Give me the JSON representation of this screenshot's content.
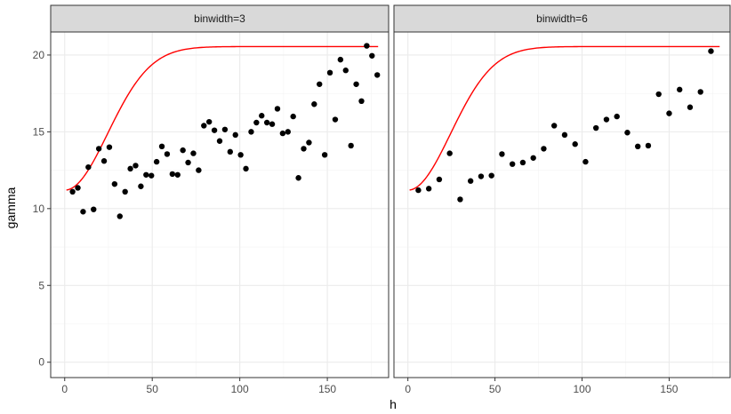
{
  "chart_data": {
    "type": "scatter",
    "xlabel": "h",
    "ylabel": "gamma",
    "xlim": [
      -8,
      185
    ],
    "ylim": [
      -1,
      21.5
    ],
    "x_ticks": [
      0,
      50,
      100,
      150
    ],
    "y_ticks": [
      0,
      5,
      10,
      15,
      20
    ],
    "grid": true,
    "colors": {
      "points": "#000000",
      "curve": "#ff0000",
      "strip": "#d9d9d9",
      "grid": "#ebebeb"
    },
    "panels": [
      {
        "strip_label": "binwidth=3",
        "points": [
          [
            4.5,
            11.1
          ],
          [
            7.5,
            11.35
          ],
          [
            10.5,
            9.8
          ],
          [
            13.5,
            12.7
          ],
          [
            16.5,
            9.95
          ],
          [
            19.5,
            13.9
          ],
          [
            22.5,
            13.1
          ],
          [
            25.5,
            14.0
          ],
          [
            28.5,
            11.6
          ],
          [
            31.5,
            9.5
          ],
          [
            34.5,
            11.1
          ],
          [
            37.5,
            12.6
          ],
          [
            40.5,
            12.8
          ],
          [
            43.5,
            11.45
          ],
          [
            46.5,
            12.2
          ],
          [
            49.5,
            12.15
          ],
          [
            52.5,
            13.05
          ],
          [
            55.5,
            14.05
          ],
          [
            58.5,
            13.55
          ],
          [
            61.5,
            12.25
          ],
          [
            64.5,
            12.2
          ],
          [
            67.5,
            13.8
          ],
          [
            70.5,
            13.0
          ],
          [
            73.5,
            13.6
          ],
          [
            76.5,
            12.5
          ],
          [
            79.5,
            15.4
          ],
          [
            82.5,
            15.65
          ],
          [
            85.5,
            15.1
          ],
          [
            88.5,
            14.4
          ],
          [
            91.5,
            15.15
          ],
          [
            94.5,
            13.7
          ],
          [
            97.5,
            14.8
          ],
          [
            100.5,
            13.5
          ],
          [
            103.5,
            12.6
          ],
          [
            106.5,
            15.0
          ],
          [
            109.5,
            15.6
          ],
          [
            112.5,
            16.05
          ],
          [
            115.5,
            15.6
          ],
          [
            118.5,
            15.5
          ],
          [
            121.5,
            16.5
          ],
          [
            124.5,
            14.9
          ],
          [
            127.5,
            15.0
          ],
          [
            130.5,
            16.0
          ],
          [
            133.5,
            12.0
          ],
          [
            136.5,
            13.9
          ],
          [
            139.5,
            14.3
          ],
          [
            142.5,
            16.8
          ],
          [
            145.5,
            18.1
          ],
          [
            148.5,
            13.5
          ],
          [
            151.5,
            18.85
          ],
          [
            154.5,
            15.8
          ],
          [
            157.5,
            19.7
          ],
          [
            160.5,
            19.0
          ],
          [
            163.5,
            14.1
          ],
          [
            166.5,
            18.1
          ],
          [
            169.5,
            17.0
          ],
          [
            172.5,
            20.6
          ],
          [
            175.5,
            19.95
          ],
          [
            178.5,
            18.7
          ]
        ]
      },
      {
        "strip_label": "binwidth=6",
        "points": [
          [
            6,
            11.2
          ],
          [
            12,
            11.3
          ],
          [
            18,
            11.9
          ],
          [
            24,
            13.6
          ],
          [
            30,
            10.6
          ],
          [
            36,
            11.8
          ],
          [
            42,
            12.1
          ],
          [
            48,
            12.15
          ],
          [
            54,
            13.55
          ],
          [
            60,
            12.9
          ],
          [
            66,
            13.0
          ],
          [
            72,
            13.3
          ],
          [
            78,
            13.9
          ],
          [
            84,
            15.4
          ],
          [
            90,
            14.8
          ],
          [
            96,
            14.2
          ],
          [
            102,
            13.05
          ],
          [
            108,
            15.25
          ],
          [
            114,
            15.8
          ],
          [
            120,
            16.0
          ],
          [
            126,
            14.95
          ],
          [
            132,
            14.05
          ],
          [
            138,
            14.1
          ],
          [
            144,
            17.45
          ],
          [
            150,
            16.2
          ],
          [
            156,
            17.75
          ],
          [
            162,
            16.6
          ],
          [
            168,
            17.6
          ],
          [
            174,
            20.25
          ]
        ]
      }
    ],
    "fitted_curve": {
      "type": "gaussian_variogram",
      "nugget": 11.2,
      "sill": 20.55,
      "range": 60,
      "x_from": 1,
      "x_to": 179
    }
  }
}
